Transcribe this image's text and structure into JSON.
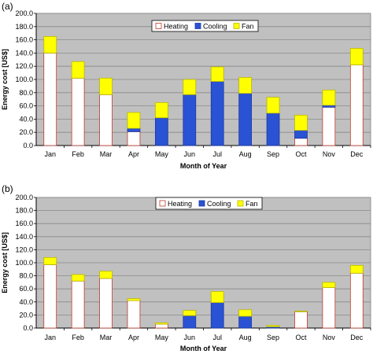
{
  "colors": {
    "heating_fill": "#ffffff",
    "heating_edge": "#c0392b",
    "cooling": "#2a52d4",
    "fan": "#ffff00",
    "plot_bg": "#c0c0c0",
    "grid": "#8a8a8a"
  },
  "chart_data": [
    {
      "type": "bar",
      "stacked": true,
      "panel_label": "(a)",
      "categories": [
        "Jan",
        "Feb",
        "Mar",
        "Apr",
        "May",
        "Jun",
        "Jul",
        "Aug",
        "Sep",
        "Oct",
        "Nov",
        "Dec"
      ],
      "series": [
        {
          "name": "Heating",
          "values": [
            140,
            102,
            77,
            21,
            0,
            0,
            0,
            0,
            0,
            11,
            58,
            122
          ]
        },
        {
          "name": "Cooling",
          "values": [
            0,
            0,
            0,
            5,
            42,
            77,
            97,
            79,
            49,
            12,
            3,
            0
          ]
        },
        {
          "name": "Fan",
          "values": [
            25,
            25,
            25,
            24,
            23,
            23,
            22,
            24,
            24,
            23,
            23,
            25
          ]
        }
      ],
      "xlabel": "Month of Year",
      "ylabel": "Energy cost  [US$]",
      "ylim": [
        0,
        200
      ],
      "yticks": [
        "0.0",
        "20.0",
        "40.0",
        "60.0",
        "80.0",
        "100.0",
        "120.0",
        "140.0",
        "160.0",
        "180.0",
        "200.0"
      ],
      "grid": true,
      "legend_position": "top"
    },
    {
      "type": "bar",
      "stacked": true,
      "panel_label": "(b)",
      "categories": [
        "Jan",
        "Feb",
        "Mar",
        "Apr",
        "May",
        "Jun",
        "Jul",
        "Aug",
        "Sep",
        "Oct",
        "Nov",
        "Dec"
      ],
      "series": [
        {
          "name": "Heating",
          "values": [
            97,
            72,
            76,
            42,
            6,
            0,
            0,
            0,
            0,
            25,
            62,
            84
          ]
        },
        {
          "name": "Cooling",
          "values": [
            0,
            0,
            0,
            0,
            0,
            19,
            39,
            18,
            2,
            0,
            0,
            0
          ]
        },
        {
          "name": "Fan",
          "values": [
            11,
            10,
            11,
            3,
            2,
            8,
            17,
            10,
            2,
            1,
            8,
            12
          ]
        }
      ],
      "xlabel": "Month of Year",
      "ylabel": "Energy cost  [US$]",
      "ylim": [
        0,
        200
      ],
      "yticks": [
        "0.0",
        "20.0",
        "40.0",
        "60.0",
        "80.0",
        "100.0",
        "120.0",
        "140.0",
        "160.0",
        "180.0",
        "200.0"
      ],
      "grid": true,
      "legend_position": "top"
    }
  ]
}
